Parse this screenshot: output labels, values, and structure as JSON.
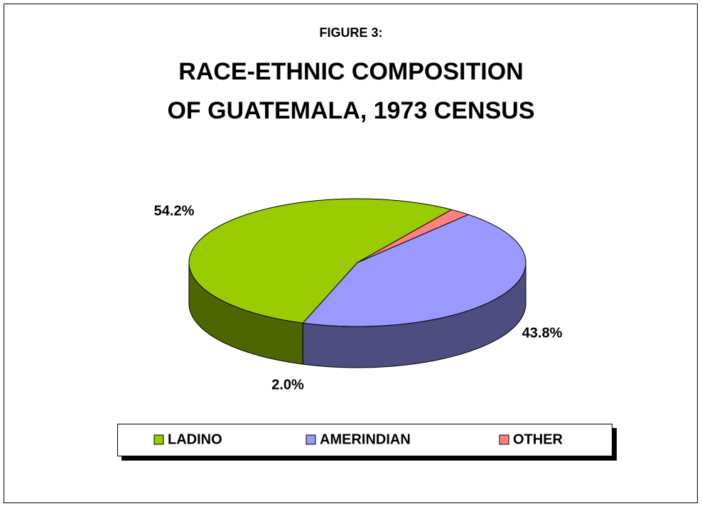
{
  "chart_data": {
    "type": "pie",
    "subtitle": "FIGURE 3:",
    "title": [
      "RACE-ETHNIC COMPOSITION",
      "OF GUATEMALA, 1973 CENSUS"
    ],
    "categories": [
      "LADINO",
      "AMERINDIAN",
      "OTHER"
    ],
    "values": [
      54.2,
      43.8,
      2.0
    ],
    "value_labels": [
      "54.2%",
      "43.8%",
      "2.0%"
    ],
    "colors": [
      "#99cc00",
      "#9999ff",
      "#ff8080"
    ],
    "legend": "bottom"
  }
}
